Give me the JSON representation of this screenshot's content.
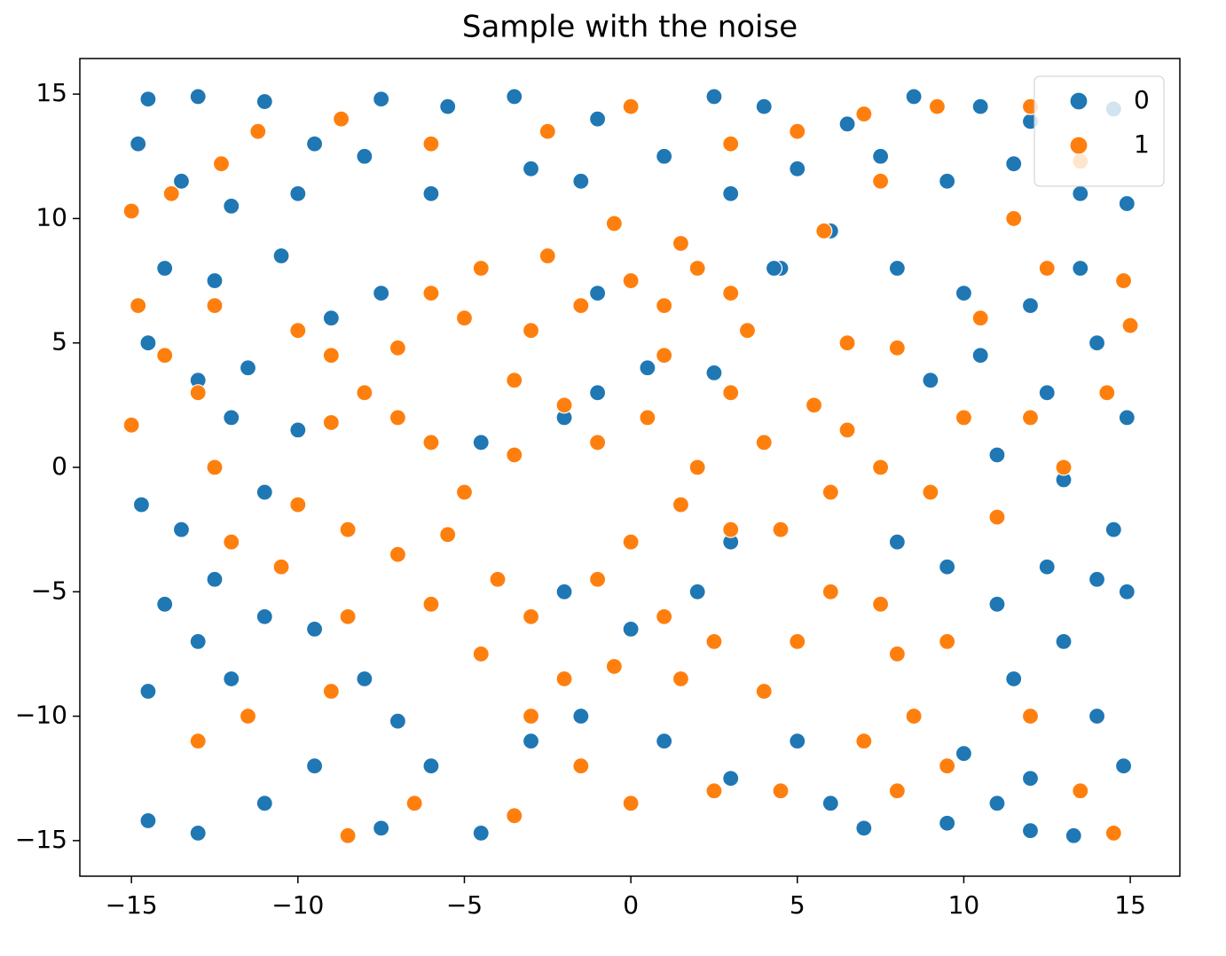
{
  "chart_data": {
    "type": "scatter",
    "title": "Sample with the noise",
    "xlim": [
      -16.55,
      16.49
    ],
    "ylim": [
      -16.43,
      16.43
    ],
    "xticks": [
      {
        "value": -15,
        "label": "−15"
      },
      {
        "value": -10,
        "label": "−10"
      },
      {
        "value": -5,
        "label": "−5"
      },
      0,
      5,
      10,
      15
    ],
    "yticks": [
      {
        "value": -15,
        "label": "−15"
      },
      {
        "value": -10,
        "label": "−10"
      },
      {
        "value": -5,
        "label": "−5"
      },
      0,
      5,
      10,
      15
    ],
    "legend": "upper right",
    "series": [
      {
        "name": "0",
        "color": "#1f77b4",
        "x": [
          -14.5,
          -13,
          -11,
          -9.5,
          -7.5,
          -5.5,
          -3.5,
          -1,
          2.5,
          4,
          6.5,
          8.5,
          10.5,
          12,
          14.5,
          -14.8,
          -13.5,
          -12,
          -10,
          -8,
          -6,
          -3,
          -1.5,
          1,
          3,
          5,
          7.5,
          9.5,
          11.5,
          13.5,
          14.9,
          -14,
          -12.5,
          -10.5,
          -9,
          -7.5,
          4.5,
          6,
          8,
          10,
          12,
          13.5,
          -14.5,
          -13,
          -11.5,
          -12,
          -10,
          -11,
          9,
          10.5,
          12.5,
          14,
          14.9,
          11,
          13,
          14.5,
          -14.7,
          -13.5,
          -14,
          -12.5,
          -11,
          -9.5,
          -8,
          -7,
          -13,
          -14.5,
          -12,
          8,
          9.5,
          11,
          12.5,
          14,
          14.9,
          13,
          11.5,
          14,
          10,
          12,
          14.8,
          -14.5,
          -13,
          -11,
          -9.5,
          -7.5,
          -6,
          -4.5,
          -3,
          -1.5,
          1,
          3,
          5,
          6,
          7,
          9.5,
          11,
          12,
          13.3,
          2,
          3,
          -2,
          0,
          -1,
          -2,
          2.5,
          -4.5,
          4.3,
          -1,
          0.5
        ],
        "values": [
          14.8,
          14.9,
          14.7,
          13,
          14.8,
          14.5,
          14.9,
          14,
          14.9,
          14.5,
          13.8,
          14.9,
          14.5,
          13.9,
          14.4,
          13,
          11.5,
          10.5,
          11,
          12.5,
          11,
          12,
          11.5,
          12.5,
          11,
          12,
          12.5,
          11.5,
          12.2,
          11,
          10.6,
          8,
          7.5,
          8.5,
          6,
          7,
          8,
          9.5,
          8,
          7,
          6.5,
          8,
          5,
          3.5,
          4,
          2,
          1.5,
          -1,
          3.5,
          4.5,
          3,
          5,
          2,
          0.5,
          -0.5,
          -2.5,
          -1.5,
          -2.5,
          -5.5,
          -4.5,
          -6,
          -6.5,
          -8.5,
          -10.2,
          -7,
          -9,
          -8.5,
          -3,
          -4,
          -5.5,
          -4,
          -4.5,
          -5,
          -7,
          -8.5,
          -10,
          -11.5,
          -12.5,
          -12,
          -14.2,
          -14.7,
          -13.5,
          -12,
          -14.5,
          -12,
          -14.7,
          -11,
          -10,
          -11,
          -12.5,
          -11,
          -13.5,
          -14.5,
          -14.3,
          -13.5,
          -14.6,
          -14.8,
          -5,
          -3,
          -5,
          -6.5,
          3,
          2,
          3.8,
          1,
          8,
          7,
          4
        ]
      },
      {
        "name": "1",
        "color": "#ff7f0e",
        "x": [
          -15,
          -14.8,
          -14,
          -15,
          -12.5,
          -13,
          -12.5,
          -10,
          -9,
          -8,
          -7,
          -6,
          -9,
          -10,
          -8.5,
          -7,
          -5.5,
          -6,
          -4,
          -3,
          -4.5,
          -5,
          -3.5,
          -2,
          -3.5,
          -3,
          -1.5,
          0,
          1,
          2,
          3,
          -0.5,
          1.5,
          -2.5,
          -4.5,
          -6,
          -7,
          -5,
          1,
          3,
          0.5,
          -1,
          2,
          4,
          5.5,
          6.5,
          7.5,
          6,
          4.5,
          3,
          1.5,
          0,
          -1,
          1,
          2.5,
          1.5,
          -0.5,
          -2,
          -3,
          -1.5,
          0,
          2.5,
          4,
          5,
          6,
          7.5,
          8,
          9.5,
          8.5,
          7,
          -9,
          -8.5,
          -10.5,
          -12,
          -13,
          -11.5,
          -8.5,
          -6.5,
          -3.5,
          4.5,
          8,
          9.5,
          12,
          13.5,
          14.5,
          12,
          13,
          10,
          9,
          11,
          10.5,
          12.5,
          14.8,
          15,
          14.3,
          11.5,
          12,
          13.5,
          9.2,
          7,
          5,
          3,
          0,
          -2.5,
          -6,
          -8.7,
          -11.2,
          -13.8,
          -12.3,
          7.5,
          5.8,
          8,
          6.5,
          3.5
        ],
        "values": [
          10.3,
          6.5,
          4.5,
          1.7,
          6.5,
          3,
          0,
          5.5,
          4.5,
          3,
          2,
          1,
          1.8,
          -1.5,
          -2.5,
          -3.5,
          -2.7,
          -5.5,
          -4.5,
          -6,
          -7.5,
          -1,
          0.5,
          2.5,
          3.5,
          5.5,
          6.5,
          7.5,
          6.5,
          8,
          7,
          9.8,
          9,
          8.5,
          8,
          7,
          4.8,
          6,
          4.5,
          3,
          2,
          1,
          0,
          1,
          2.5,
          1.5,
          0,
          -1,
          -2.5,
          -2.5,
          -1.5,
          -3,
          -4.5,
          -6,
          -7,
          -8.5,
          -8,
          -8.5,
          -10,
          -12,
          -13.5,
          -13,
          -9,
          -7,
          -5,
          -5.5,
          -7.5,
          -7,
          -10,
          -11,
          -9,
          -6,
          -4,
          -3,
          -11,
          -10,
          -14.8,
          -13.5,
          -14,
          -13,
          -13,
          -12,
          -10,
          -13,
          -14.7,
          2,
          0,
          2,
          -1,
          -2,
          6,
          8,
          7.5,
          5.7,
          3,
          10,
          14.5,
          12.3,
          14.5,
          14.2,
          13.5,
          13,
          14.5,
          13.5,
          13,
          14,
          13.5,
          11,
          12.2,
          11.5,
          9.5,
          4.8,
          5,
          5.5
        ]
      }
    ]
  }
}
